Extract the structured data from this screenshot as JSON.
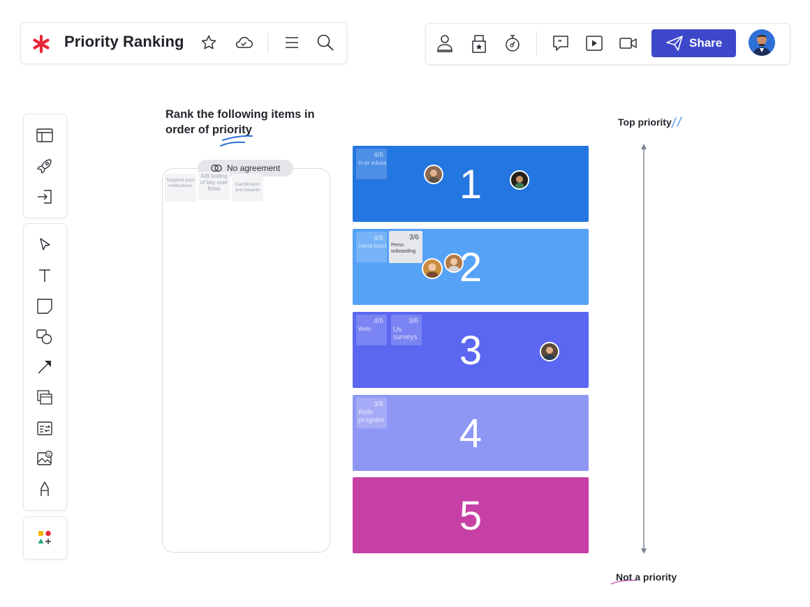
{
  "header": {
    "title": "Priority Ranking",
    "share_label": "Share"
  },
  "icons": {
    "logo": "lucid-asterisk-icon",
    "favorite": "star-icon",
    "cloud": "cloud-saved-icon",
    "menu": "hamburger-menu-icon",
    "search": "search-icon",
    "collaborate": "collaborators-icon",
    "vote": "ballot-box-icon",
    "timer": "timer-icon",
    "comment": "comment-icon",
    "present": "play-icon",
    "video": "video-icon",
    "share": "paper-plane-icon"
  },
  "colors": {
    "brand_red": "#e8283a",
    "share_blue": "#3d47c9",
    "rank1": "#2476e0",
    "rank2": "#55a2f7",
    "rank3": "#5b67f0",
    "rank4": "#8f97f5",
    "rank5": "#c640a5"
  },
  "toolbar": {
    "group1": [
      "templates-icon",
      "launch-rocket-icon",
      "import-icon"
    ],
    "group2": [
      "select-cursor-icon",
      "text-icon",
      "sticky-note-icon",
      "shapes-icon",
      "line-arrow-icon",
      "frame-icon",
      "table-icon",
      "image-icon",
      "pen-icon"
    ],
    "group3": [
      "shape-library-icon"
    ]
  },
  "board": {
    "prompt_line1": "Rank the following items in",
    "prompt_line2": "order of priority",
    "agreement_badge": "No agreement",
    "pool_notes": [
      "Targeted push notifications",
      "A/B testing of key user flows",
      "Gamification and rewards"
    ],
    "ranks": [
      {
        "number": "1",
        "notes": [
          {
            "text": "In-pr education",
            "fraction": "4/6"
          }
        ]
      },
      {
        "number": "2",
        "notes": [
          {
            "text": "Intera tutorials",
            "fraction": "4/6"
          },
          {
            "text": "Perso onboarding",
            "fraction": "3/6"
          }
        ]
      },
      {
        "number": "3",
        "notes": [
          {
            "text": "Webi",
            "fraction": "4/6"
          },
          {
            "text": "Us surveys",
            "fraction": "3/6"
          }
        ]
      },
      {
        "number": "4",
        "notes": [
          {
            "text": "Refe program",
            "fraction": "3/6"
          }
        ]
      },
      {
        "number": "5",
        "notes": []
      }
    ],
    "top_label": "Top priority",
    "bottom_label": "Not a priority"
  }
}
